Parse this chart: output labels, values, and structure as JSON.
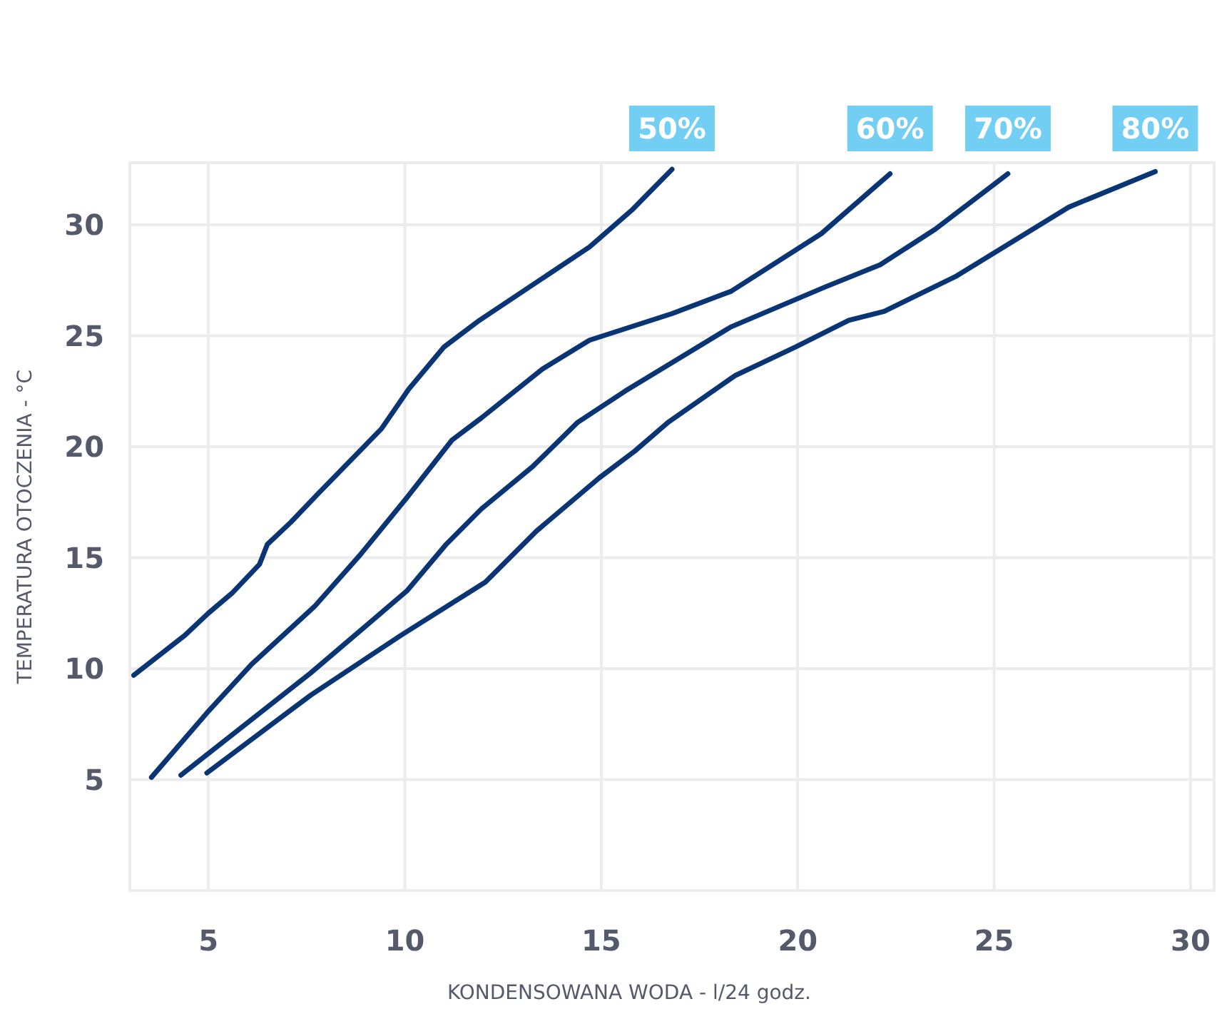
{
  "chart_data": {
    "type": "line",
    "xlabel": "KONDENSOWANA WODA - l/24 godz.",
    "ylabel": "TEMPERATURA OTOCZENIA - °C",
    "xlim": [
      3,
      30.6
    ],
    "ylim": [
      0,
      32.8
    ],
    "xticks": [
      5,
      10,
      15,
      20,
      25,
      30
    ],
    "yticks": [
      5,
      10,
      15,
      20,
      25,
      30
    ],
    "grid": true,
    "marker": "none",
    "line_style": "solid",
    "series": [
      {
        "name": "50%",
        "color": "#0a3575",
        "x": [
          3.1,
          4.4,
          5,
          5.6,
          6.3,
          6.5,
          7.1,
          7.8,
          9.4,
          10.1,
          11,
          11.9,
          14.7,
          15.8,
          16.8
        ],
        "values": [
          9.7,
          11.5,
          12.5,
          13.4,
          14.7,
          15.6,
          16.6,
          17.9,
          20.8,
          22.6,
          24.5,
          25.7,
          29,
          30.7,
          32.5
        ]
      },
      {
        "name": "60%",
        "color": "#0a3575",
        "x": [
          3.55,
          4.96,
          6.1,
          7.7,
          8.85,
          10.05,
          11.2,
          11.95,
          13.5,
          14.7,
          16.8,
          18.3,
          20.6,
          22.35
        ],
        "values": [
          5.1,
          8,
          10.2,
          12.8,
          15.1,
          17.7,
          20.3,
          21.3,
          23.5,
          24.8,
          26,
          27,
          29.6,
          32.3
        ]
      },
      {
        "name": "70%",
        "color": "#0a3575",
        "x": [
          4.3,
          7.6,
          10.05,
          11.05,
          11.95,
          13.25,
          14.4,
          15.6,
          18.3,
          20.7,
          22.1,
          23.5,
          25.35
        ],
        "values": [
          5.2,
          9.8,
          13.5,
          15.6,
          17.2,
          19.1,
          21.1,
          22.5,
          25.4,
          27.2,
          28.2,
          29.8,
          32.3
        ]
      },
      {
        "name": "80%",
        "color": "#0a3575",
        "x": [
          4.96,
          7.6,
          9.9,
          12.05,
          13.35,
          14.95,
          15.85,
          16.7,
          18.4,
          19.95,
          21.3,
          22.2,
          24.05,
          26.9,
          29.1
        ],
        "values": [
          5.3,
          8.8,
          11.5,
          13.9,
          16.2,
          18.6,
          19.8,
          21.1,
          23.2,
          24.5,
          25.7,
          26.1,
          27.7,
          30.8,
          32.4
        ]
      }
    ]
  }
}
